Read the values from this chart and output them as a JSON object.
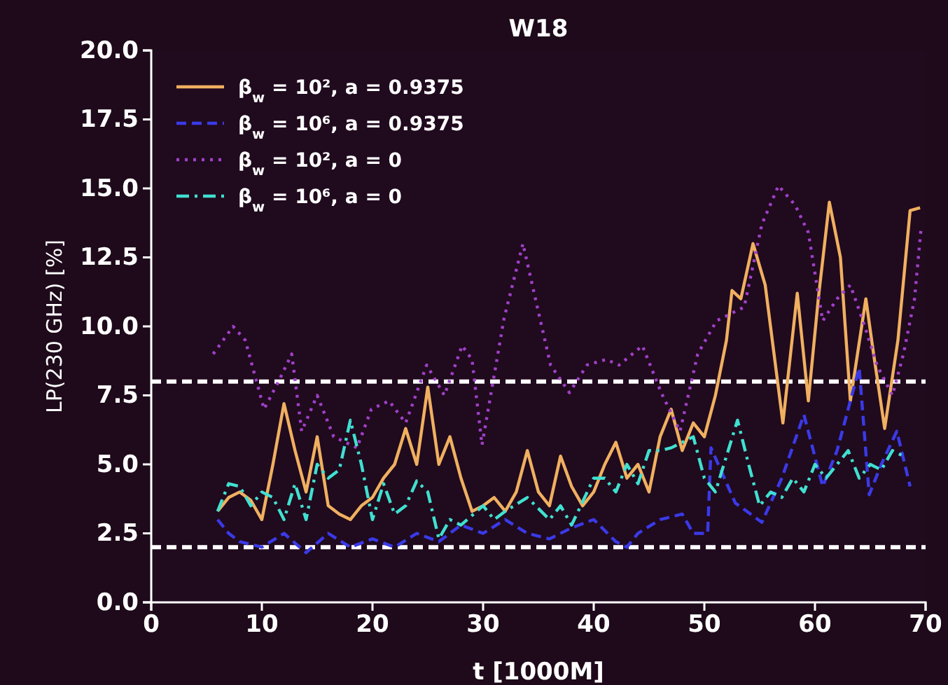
{
  "chart_data": {
    "type": "line",
    "title": "W18",
    "xlabel": "t [1000M]",
    "ylabel": "LP(230 GHz) [%]",
    "xlim": [
      0,
      70
    ],
    "xticks": [
      0,
      10,
      20,
      30,
      40,
      50,
      60,
      70
    ],
    "ylim": [
      0,
      20
    ],
    "yticks": [
      {
        "value": 0,
        "label": "0.0"
      },
      {
        "value": 2.5,
        "label": "2.5"
      },
      {
        "value": 5,
        "label": "5.0"
      },
      {
        "value": 7.5,
        "label": "7.5"
      },
      {
        "value": 10,
        "label": "10.0"
      },
      {
        "value": 12.5,
        "label": "12.5"
      },
      {
        "value": 15,
        "label": "15.0"
      },
      {
        "value": 17.5,
        "label": "17.5"
      },
      {
        "value": 20,
        "label": "20.0"
      }
    ],
    "grid": false,
    "legend": "top left",
    "marker": "none",
    "ref_lines": [
      {
        "axis": "y",
        "value": 8,
        "color": "#ffffff",
        "line_style": "dashed"
      },
      {
        "axis": "y",
        "value": 2,
        "color": "#ffffff",
        "line_style": "dashed"
      }
    ],
    "series": [
      {
        "name": "β$_{w}$ = 10², a = 0.9375",
        "color": "#f0b060",
        "line_style": "solid",
        "x": [
          6,
          7,
          8,
          9,
          10,
          11,
          12,
          13,
          14,
          15,
          16,
          17,
          18,
          19,
          20,
          21,
          22,
          23,
          24,
          25,
          26,
          27,
          28,
          29,
          30,
          31,
          32,
          33,
          34,
          35,
          36,
          37,
          38,
          39,
          40,
          41,
          42,
          43,
          44,
          45,
          46,
          47,
          48,
          49,
          50,
          51,
          52,
          52.5,
          53.3,
          54.4,
          55.5,
          56.3,
          57.1,
          58.4,
          59.4,
          60.3,
          61.3,
          62.3,
          63.2,
          64.6,
          65.3,
          66.3,
          67.5,
          68.6,
          69.5
        ],
        "values": [
          3.3,
          3.8,
          4.0,
          3.7,
          3.0,
          5.0,
          7.2,
          5.5,
          4.0,
          6.0,
          3.5,
          3.2,
          3.0,
          3.5,
          3.8,
          4.5,
          5.0,
          6.3,
          5.0,
          7.8,
          5.0,
          6.0,
          4.5,
          3.3,
          3.5,
          3.8,
          3.3,
          4.0,
          5.5,
          4.0,
          3.5,
          5.3,
          4.2,
          3.5,
          4.0,
          5.0,
          5.8,
          4.5,
          5.0,
          4.0,
          6.0,
          7.0,
          5.5,
          6.5,
          6.0,
          7.5,
          9.5,
          11.3,
          11.0,
          13.0,
          11.5,
          9.0,
          6.5,
          11.2,
          7.3,
          11.0,
          14.5,
          12.5,
          7.3,
          11.0,
          9.0,
          6.3,
          9.5,
          14.2,
          14.3
        ]
      },
      {
        "name": "β$_{w}$ = 10⁶, a = 0.9375",
        "color": "#3a3ae8",
        "line_style": "dashed",
        "x": [
          6,
          7,
          8,
          10,
          12,
          14,
          16,
          18,
          20,
          22,
          24,
          26,
          28,
          30,
          32,
          34,
          36,
          38,
          40,
          42,
          43,
          44,
          46,
          48,
          49,
          50.3,
          50.6,
          52.8,
          55.2,
          57,
          59,
          60.7,
          62,
          64,
          64.9,
          66,
          67.4,
          68.6
        ],
        "values": [
          3.0,
          2.5,
          2.2,
          2.0,
          2.5,
          1.8,
          2.5,
          2.0,
          2.3,
          2.0,
          2.5,
          2.2,
          2.8,
          2.5,
          3.0,
          2.5,
          2.3,
          2.7,
          3.0,
          2.2,
          2.0,
          2.5,
          3.0,
          3.2,
          2.5,
          2.5,
          5.6,
          3.6,
          2.9,
          4.5,
          6.8,
          4.2,
          5.5,
          8.5,
          3.9,
          5.0,
          6.2,
          4.2
        ]
      },
      {
        "name": "β$_{w}$ = 10², a = 0",
        "color": "#a040c8",
        "line_style": "dotted",
        "x": [
          5.6,
          7.4,
          8.5,
          10.2,
          11.5,
          12.7,
          13.6,
          15,
          16.5,
          18.6,
          19.9,
          21.5,
          23,
          24.9,
          26.5,
          28.1,
          29,
          29.9,
          31.9,
          33.6,
          34.9,
          36.1,
          37.8,
          39.4,
          41.1,
          42.3,
          44.4,
          46.1,
          47.8,
          49.4,
          51.1,
          53.6,
          55.2,
          56.7,
          58.2,
          59.4,
          60.7,
          62,
          63.2,
          64.5,
          65.6,
          67,
          68,
          69,
          69.6
        ],
        "values": [
          9.0,
          10.0,
          9.5,
          7.0,
          8.0,
          9.0,
          6.2,
          7.5,
          6.0,
          5.6,
          7.0,
          7.3,
          6.5,
          8.6,
          7.5,
          9.3,
          8.8,
          5.7,
          10.3,
          13.0,
          10.7,
          8.6,
          7.6,
          8.6,
          8.8,
          8.6,
          9.3,
          7.6,
          6.2,
          9.0,
          10.2,
          10.7,
          13.7,
          15.1,
          14.4,
          13.4,
          10.2,
          11.0,
          11.5,
          10.0,
          8.6,
          7.5,
          9.0,
          11.0,
          13.6
        ]
      },
      {
        "name": "β$_{w}$ = 10⁶, a = 0",
        "color": "#40e0d0",
        "line_style": "dashdot",
        "x": [
          6,
          7,
          8,
          9,
          10,
          11,
          12,
          13,
          14,
          15,
          16,
          17,
          18,
          19,
          20,
          21,
          22,
          23,
          24,
          25,
          26,
          27,
          28,
          30,
          31,
          32,
          34,
          36,
          37,
          38,
          40,
          41,
          42,
          43,
          44,
          45,
          46,
          47,
          48,
          49,
          50,
          51,
          52,
          53,
          54,
          55,
          56,
          57,
          58,
          59,
          60,
          61,
          62,
          63,
          64,
          65,
          66,
          67,
          68
        ],
        "values": [
          3.3,
          4.3,
          4.2,
          3.5,
          4.0,
          3.8,
          3.0,
          4.3,
          3.0,
          5.0,
          4.5,
          4.8,
          6.6,
          5.0,
          3.0,
          4.3,
          3.2,
          3.5,
          4.4,
          4.0,
          2.3,
          3.0,
          2.8,
          3.5,
          3.0,
          3.3,
          3.8,
          3.0,
          3.5,
          2.8,
          4.5,
          4.5,
          4.0,
          5.0,
          4.3,
          5.5,
          5.5,
          5.6,
          5.8,
          6.0,
          4.5,
          4.0,
          5.3,
          6.6,
          5.0,
          3.5,
          4.0,
          3.8,
          4.5,
          4.0,
          5.0,
          4.5,
          5.0,
          5.5,
          4.5,
          5.0,
          4.8,
          5.5,
          5.3
        ]
      }
    ]
  }
}
